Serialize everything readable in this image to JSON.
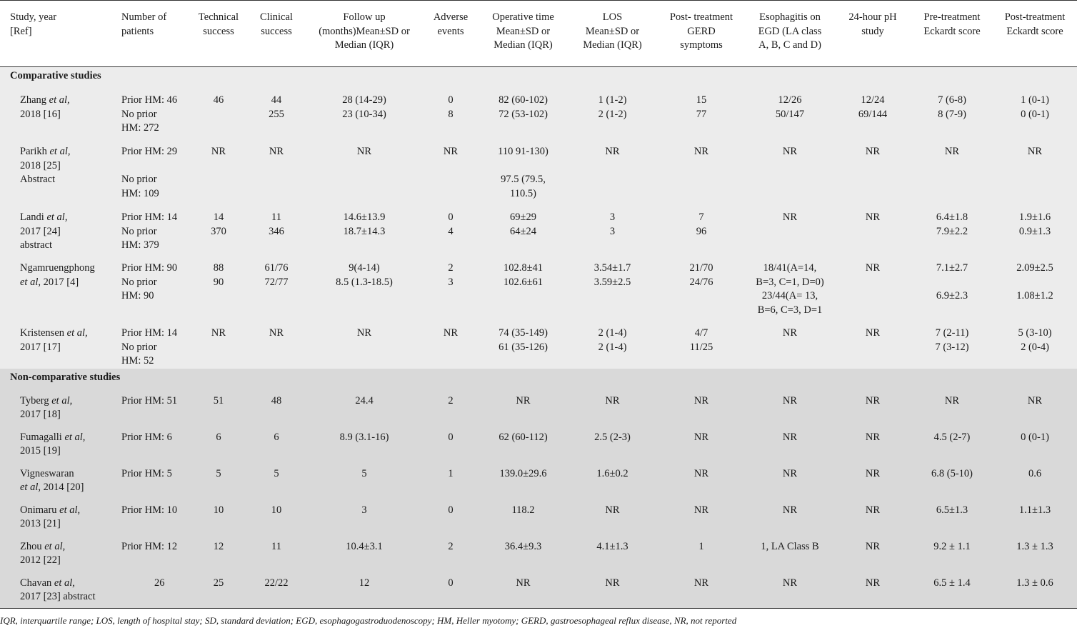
{
  "headers": [
    [
      "Study, year",
      "[Ref]"
    ],
    [
      "Number of",
      "patients"
    ],
    [
      "Technical",
      "success"
    ],
    [
      "Clinical",
      "success"
    ],
    [
      "Follow up",
      "(months)Mean±SD or",
      "Median (IQR)"
    ],
    [
      "Adverse",
      "events"
    ],
    [
      "Operative time",
      "Mean±SD or",
      "Median (IQR)"
    ],
    [
      "LOS",
      "Mean±SD or",
      "Median (IQR)"
    ],
    [
      "Post- treatment",
      "GERD",
      "symptoms"
    ],
    [
      "Esophagitis on",
      "EGD (LA class",
      "A, B, C and D)"
    ],
    [
      "24-hour pH",
      "study"
    ],
    [
      "Pre-treatment",
      "Eckardt score"
    ],
    [
      "Post-treatment",
      "Eckardt score"
    ]
  ],
  "sections": {
    "comparative": "Comparative studies",
    "noncomparative": "Non-comparative studies"
  },
  "rows": {
    "zhang": {
      "study": [
        "Zhang ",
        "et al,",
        "2018 [16]"
      ],
      "patients": [
        "Prior HM: 46",
        "No prior",
        "HM: 272"
      ],
      "tech": [
        "46",
        ""
      ],
      "clin": [
        "44",
        "255"
      ],
      "follow": [
        "28 (14-29)",
        "23 (10-34)"
      ],
      "ae": [
        "0",
        "8"
      ],
      "op": [
        "82 (60-102)",
        "72 (53-102)"
      ],
      "los": [
        "1 (1-2)",
        "2 (1-2)"
      ],
      "gerd": [
        "15",
        "77"
      ],
      "egd": [
        "12/26",
        "50/147"
      ],
      "ph": [
        "12/24",
        "69/144"
      ],
      "pre": [
        "7 (6-8)",
        "8 (7-9)"
      ],
      "post": [
        "1 (0-1)",
        "0 (0-1)"
      ]
    },
    "parikh": {
      "study": [
        "Parikh ",
        "et al,",
        "2018 [25]",
        "Abstract"
      ],
      "patients": [
        "Prior HM: 29",
        "No prior",
        "HM: 109"
      ],
      "tech": "NR",
      "clin": "NR",
      "follow": "NR",
      "ae": "NR",
      "op": [
        "110 91-130)",
        "97.5 (79.5,",
        "110.5)"
      ],
      "los": "NR",
      "gerd": "NR",
      "egd": "NR",
      "ph": "NR",
      "pre": "NR",
      "post": "NR"
    },
    "landi": {
      "study": [
        "Landi ",
        "et al,",
        "2017 [24]",
        "abstract"
      ],
      "patients": [
        "Prior HM: 14",
        "No prior",
        "HM: 379"
      ],
      "tech": [
        "14",
        "370"
      ],
      "clin": [
        "11",
        "346"
      ],
      "follow": [
        "14.6±13.9",
        "18.7±14.3"
      ],
      "ae": [
        "0",
        "4"
      ],
      "op": [
        "69±29",
        "64±24"
      ],
      "los": [
        "3",
        "3"
      ],
      "gerd": [
        "7",
        "96"
      ],
      "egd": "NR",
      "ph": "NR",
      "pre": [
        "6.4±1.8",
        "7.9±2.2"
      ],
      "post": [
        "1.9±1.6",
        "0.9±1.3"
      ]
    },
    "ngam": {
      "study": [
        "Ngamruengphong",
        "et al,",
        " 2017 [4]"
      ],
      "patients": [
        "Prior HM: 90",
        "No prior",
        "HM: 90"
      ],
      "tech": [
        "88",
        "90"
      ],
      "clin": [
        "61/76",
        "72/77"
      ],
      "follow": [
        "9(4-14)",
        "8.5 (1.3-18.5)"
      ],
      "ae": [
        "2",
        "3"
      ],
      "op": [
        "102.8±41",
        "102.6±61"
      ],
      "los": [
        "3.54±1.7",
        "3.59±2.5"
      ],
      "gerd": [
        "21/70",
        "24/76"
      ],
      "egd": [
        "18/41(A=14,",
        "B=3, C=1, D=0)",
        "23/44(A= 13,",
        "B=6, C=3, D=1"
      ],
      "ph": "NR",
      "pre": [
        "7.1±2.7",
        "6.9±2.3"
      ],
      "post": [
        "2.09±2.5",
        "1.08±1.2"
      ]
    },
    "krist": {
      "study": [
        "Kristensen ",
        "et al,",
        "2017 [17]"
      ],
      "patients": [
        "Prior HM: 14",
        "No prior",
        "HM: 52"
      ],
      "tech": "NR",
      "clin": "NR",
      "follow": "NR",
      "ae": "NR",
      "op": [
        "74 (35-149)",
        "61 (35-126)"
      ],
      "los": [
        "2 (1-4)",
        "2 (1-4)"
      ],
      "gerd": [
        "4/7",
        "11/25"
      ],
      "egd": "NR",
      "ph": "NR",
      "pre": [
        "7 (2-11)",
        "7 (3-12)"
      ],
      "post": [
        "5 (3-10)",
        "2 (0-4)"
      ]
    },
    "tyberg": {
      "study": [
        "Tyberg ",
        "et al,",
        "2017 [18]"
      ],
      "patients": "Prior HM: 51",
      "tech": "51",
      "clin": "48",
      "follow": "24.4",
      "ae": "2",
      "op": "NR",
      "los": "NR",
      "gerd": "NR",
      "egd": "NR",
      "ph": "NR",
      "pre": "NR",
      "post": "NR"
    },
    "fumagalli": {
      "study": [
        "Fumagalli ",
        "et al,",
        "2015 [19]"
      ],
      "patients": "Prior HM: 6",
      "tech": "6",
      "clin": "6",
      "follow": "8.9 (3.1-16)",
      "ae": "0",
      "op": "62 (60-112)",
      "los": "2.5 (2-3)",
      "gerd": "NR",
      "egd": "NR",
      "ph": "NR",
      "pre": "4.5 (2-7)",
      "post": "0 (0-1)"
    },
    "vignes": {
      "study": [
        "Vigneswaran",
        "et al,",
        " 2014 [20]"
      ],
      "patients": "Prior HM: 5",
      "tech": "5",
      "clin": "5",
      "follow": "5",
      "ae": "1",
      "op": "139.0±29.6",
      "los": "1.6±0.2",
      "gerd": "NR",
      "egd": "NR",
      "ph": "NR",
      "pre": "6.8 (5-10)",
      "post": "0.6"
    },
    "onimaru": {
      "study": [
        "Onimaru ",
        "et al,",
        "2013 [21]"
      ],
      "patients": "Prior HM: 10",
      "tech": "10",
      "clin": "10",
      "follow": "3",
      "ae": "0",
      "op": "118.2",
      "los": "NR",
      "gerd": "NR",
      "egd": "NR",
      "ph": "NR",
      "pre": "6.5±1.3",
      "post": "1.1±1.3"
    },
    "zhou": {
      "study": [
        "Zhou ",
        "et al,",
        " 2012 [22]"
      ],
      "patients": "Prior HM: 12",
      "tech": "12",
      "clin": "11",
      "follow": "10.4±3.1",
      "ae": "2",
      "op": "36.4±9.3",
      "los": "4.1±1.3",
      "gerd": "1",
      "egd": "1, LA Class B",
      "ph": "NR",
      "pre": "9.2 ± 1.1",
      "post": "1.3 ± 1.3"
    },
    "chavan": {
      "study": [
        "Chavan ",
        "et al,",
        "2017 [23] abstract"
      ],
      "patients": "26",
      "tech": "25",
      "clin": "22/22",
      "follow": "12",
      "ae": "0",
      "op": "NR",
      "los": "NR",
      "gerd": "NR",
      "egd": "NR",
      "ph": "NR",
      "pre": "6.5 ± 1.4",
      "post": "1.3 ± 0.6"
    }
  },
  "footnote": "IQR, interquartile range; LOS, length of hospital stay; SD, standard deviation; EGD, esophagogastroduodenoscopy; HM, Heller myotomy; GERD, gastroesophageal reflux disease, NR, not reported"
}
